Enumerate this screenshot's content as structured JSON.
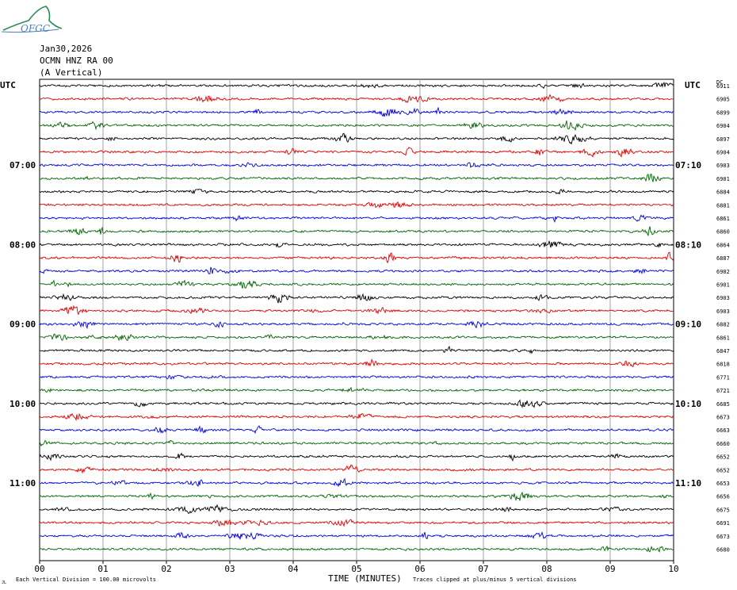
{
  "logo": {
    "text": "OFGC"
  },
  "header": {
    "date": "Jan30,2026",
    "station": "OCMN HNZ RA 00",
    "component": "(A Vertical)"
  },
  "colors": {
    "trace_cycle": [
      "#000000",
      "#e00000",
      "#0000e0",
      "#006400"
    ],
    "grid": "#8a8a8a"
  },
  "chart_data": {
    "type": "line",
    "title": "",
    "xlabel": "TIME (MINUTES)",
    "xticks": [
      "00",
      "01",
      "02",
      "03",
      "04",
      "05",
      "06",
      "07",
      "08",
      "09",
      "10"
    ],
    "xlim": [
      0,
      10
    ],
    "left_axis_title": "UTC",
    "right_axis_title": "UTC",
    "dc_title": "DC",
    "left_hour_labels": [
      {
        "row": 6,
        "text": "07:00"
      },
      {
        "row": 12,
        "text": "08:00"
      },
      {
        "row": 18,
        "text": "09:00"
      },
      {
        "row": 24,
        "text": "10:00"
      },
      {
        "row": 30,
        "text": "11:00"
      }
    ],
    "right_hour_labels": [
      {
        "row": 6,
        "text": "07:10"
      },
      {
        "row": 12,
        "text": "08:10"
      },
      {
        "row": 18,
        "text": "09:10"
      },
      {
        "row": 24,
        "text": "10:10"
      },
      {
        "row": 30,
        "text": "11:10"
      }
    ],
    "dc_offsets": [
      "6911",
      "6905",
      "6899",
      "6904",
      "6897",
      "6904",
      "6903",
      "6901",
      "6884",
      "6881",
      "6861",
      "6860",
      "6864",
      "6887",
      "6902",
      "6901",
      "6903",
      "6903",
      "6882",
      "6861",
      "6847",
      "6818",
      "6771",
      "6721",
      "6685",
      "6673",
      "6663",
      "6660",
      "6652",
      "6652",
      "6653",
      "6656",
      "6675",
      "6691",
      "6673",
      "6680"
    ],
    "footer_left": "Each Vertical Division =  100.00 microvolts",
    "footer_right": "Traces clipped at plus/minus 5 vertical divisions",
    "footer_marker": "JL"
  }
}
